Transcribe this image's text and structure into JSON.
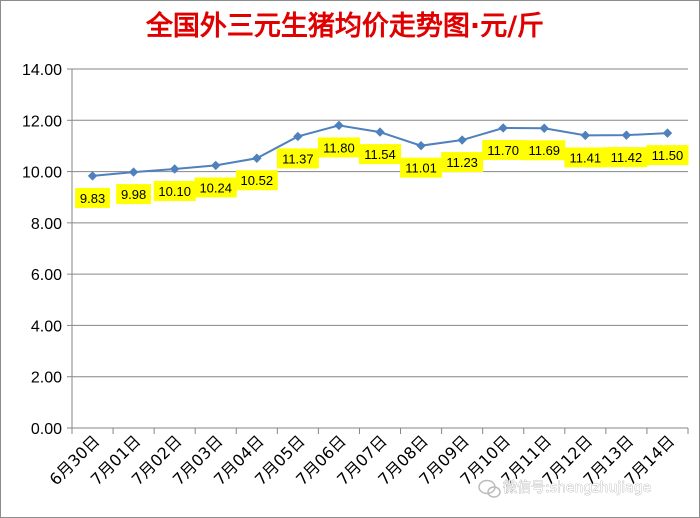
{
  "chart_data": {
    "type": "line",
    "title": "全国外三元生猪均价走势图·元/斤",
    "categories": [
      "6月30日",
      "7月01日",
      "7月02日",
      "7月03日",
      "7月04日",
      "7月05日",
      "7月06日",
      "7月07日",
      "7月08日",
      "7月09日",
      "7月10日",
      "7月11日",
      "7月12日",
      "7月13日",
      "7月14日"
    ],
    "series": [
      {
        "values": [
          9.83,
          9.98,
          10.1,
          10.24,
          10.52,
          11.37,
          11.8,
          11.54,
          11.01,
          11.23,
          11.7,
          11.69,
          11.41,
          11.42,
          11.5
        ],
        "labels": [
          "9.83",
          "9.98",
          "10.10",
          "10.24",
          "10.52",
          "11.37",
          "11.80",
          "11.54",
          "11.01",
          "11.23",
          "11.70",
          "11.69",
          "11.41",
          "11.42",
          "11.50"
        ],
        "color": "#4f81bd"
      }
    ],
    "ylim": [
      0,
      14
    ],
    "yticks": [
      "0.00",
      "2.00",
      "4.00",
      "6.00",
      "8.00",
      "10.00",
      "12.00",
      "14.00"
    ],
    "grid": true,
    "label_background": "#ffff00",
    "title_color": "#e00000"
  },
  "watermark": {
    "text": "微信号:shengzhujiage",
    "icon": "wechat-icon"
  }
}
